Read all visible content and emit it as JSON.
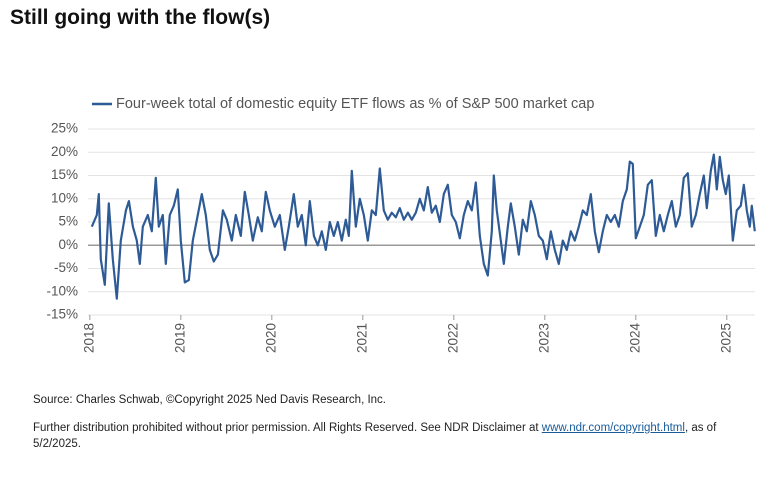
{
  "chart_data": {
    "type": "line",
    "title": "Still going with the flow(s)",
    "x": [
      2018.022,
      2018.077,
      2018.099,
      2018.121,
      2018.165,
      2018.209,
      2018.253,
      2018.297,
      2018.341,
      2018.396,
      2018.429,
      2018.473,
      2018.516,
      2018.549,
      2018.582,
      2018.637,
      2018.681,
      2018.725,
      2018.758,
      2018.802,
      2018.835,
      2018.879,
      2018.923,
      2018.967,
      2019.0,
      2019.044,
      2019.088,
      2019.132,
      2019.187,
      2019.231,
      2019.275,
      2019.319,
      2019.363,
      2019.407,
      2019.462,
      2019.505,
      2019.56,
      2019.604,
      2019.659,
      2019.703,
      2019.747,
      2019.791,
      2019.846,
      2019.89,
      2019.934,
      2019.978,
      2020.033,
      2020.088,
      2020.143,
      2020.187,
      2020.242,
      2020.286,
      2020.33,
      2020.374,
      2020.418,
      2020.462,
      2020.505,
      2020.549,
      2020.593,
      2020.637,
      2020.681,
      2020.725,
      2020.769,
      2020.813,
      2020.846,
      2020.879,
      2020.923,
      2020.967,
      2021.011,
      2021.055,
      2021.099,
      2021.143,
      2021.187,
      2021.231,
      2021.275,
      2021.319,
      2021.363,
      2021.407,
      2021.451,
      2021.495,
      2021.538,
      2021.582,
      2021.626,
      2021.67,
      2021.714,
      2021.758,
      2021.802,
      2021.846,
      2021.89,
      2021.934,
      2021.978,
      2022.022,
      2022.066,
      2022.11,
      2022.154,
      2022.198,
      2022.242,
      2022.286,
      2022.33,
      2022.374,
      2022.418,
      2022.44,
      2022.473,
      2022.516,
      2022.549,
      2022.593,
      2022.626,
      2022.67,
      2022.714,
      2022.758,
      2022.802,
      2022.846,
      2022.89,
      2022.934,
      2022.978,
      2023.022,
      2023.066,
      2023.11,
      2023.154,
      2023.198,
      2023.242,
      2023.286,
      2023.33,
      2023.374,
      2023.418,
      2023.462,
      2023.505,
      2023.549,
      2023.593,
      2023.637,
      2023.681,
      2023.725,
      2023.769,
      2023.813,
      2023.857,
      2023.901,
      2023.934,
      2023.967,
      2024.0,
      2024.044,
      2024.088,
      2024.132,
      2024.176,
      2024.22,
      2024.264,
      2024.308,
      2024.352,
      2024.396,
      2024.44,
      2024.484,
      2024.527,
      2024.571,
      2024.615,
      2024.659,
      2024.703,
      2024.747,
      2024.78,
      2024.824,
      2024.857,
      2024.89,
      2024.923,
      2024.956,
      2024.989,
      2025.022,
      2025.066,
      2025.11,
      2025.154,
      2025.187,
      2025.22,
      2025.253,
      2025.275,
      2025.308
    ],
    "series": [
      {
        "name": "Four-week total of domestic equity ETF flows as % of S&P 500 market cap",
        "color": "#2e5b96",
        "values": [
          4,
          6.5,
          11,
          -3,
          -8.5,
          9,
          -3,
          -11.5,
          1,
          7.5,
          9.5,
          4,
          1,
          -4,
          4,
          6.5,
          3,
          14.5,
          4,
          6.5,
          -4,
          6.5,
          8.5,
          12,
          1,
          -8,
          -7.5,
          1,
          6.5,
          11,
          6.5,
          -1,
          -3.5,
          -2,
          7.5,
          5.5,
          1,
          6.5,
          2,
          11.5,
          6.5,
          1,
          6,
          3,
          11.5,
          7.5,
          4,
          6.5,
          -1,
          4,
          11,
          4,
          6.5,
          0,
          9.5,
          2,
          0,
          3,
          -1,
          5,
          2,
          5,
          1,
          5.5,
          2,
          16,
          4,
          10,
          6.5,
          1,
          7.5,
          6.5,
          16.5,
          7.5,
          5.5,
          7,
          6,
          8,
          5.5,
          7,
          5.5,
          7,
          10,
          7.5,
          12.5,
          7,
          8.5,
          5,
          11,
          13,
          6.5,
          5,
          1.5,
          6.5,
          9.5,
          7.5,
          13.5,
          2,
          -4,
          -6.5,
          3,
          15,
          7.5,
          1,
          -4,
          4,
          9,
          4,
          -2,
          5.5,
          3,
          9.5,
          6.5,
          2,
          1,
          -3,
          3,
          -1,
          -4,
          1,
          -1,
          3,
          1,
          4,
          7.5,
          6.5,
          11,
          3,
          -1.5,
          3,
          6.5,
          5,
          6.5,
          4,
          9.5,
          12,
          18,
          17.5,
          1.5,
          4,
          6.5,
          13,
          14,
          2,
          6.5,
          3,
          6.5,
          9.5,
          4,
          6.5,
          14.5,
          15.5,
          4,
          6.5,
          11,
          15,
          8,
          16,
          19.5,
          12,
          19,
          14,
          11,
          15,
          1,
          7.5,
          8.5,
          13,
          7.5,
          4,
          8.5,
          3
        ]
      }
    ],
    "xlim": [
      2017.98,
      2025.31
    ],
    "xticks": [
      2018,
      2019,
      2020,
      2021,
      2022,
      2023,
      2024,
      2025
    ],
    "ylim": [
      -15,
      25
    ],
    "yticks": [
      {
        "value": -15,
        "label": "-15%"
      },
      {
        "value": -10,
        "label": "-10%"
      },
      {
        "value": -5,
        "label": "-5%"
      },
      {
        "value": 0,
        "label": "0%"
      },
      {
        "value": 5,
        "label": "5%"
      },
      {
        "value": 10,
        "label": "10%"
      },
      {
        "value": 15,
        "label": "15%"
      },
      {
        "value": 20,
        "label": "20%"
      },
      {
        "value": 25,
        "label": "25%"
      }
    ],
    "grid": true,
    "legend": "top-left"
  },
  "footer": {
    "source": "Source: Charles Schwab, ©Copyright 2025 Ned Davis Research, Inc.",
    "note": "Further distribution prohibited without prior permission. All Rights Reserved. See NDR Disclaimer at",
    "link": "www.ndr.com/copyright.html",
    "note_end": ", as of 5/2/2025."
  }
}
